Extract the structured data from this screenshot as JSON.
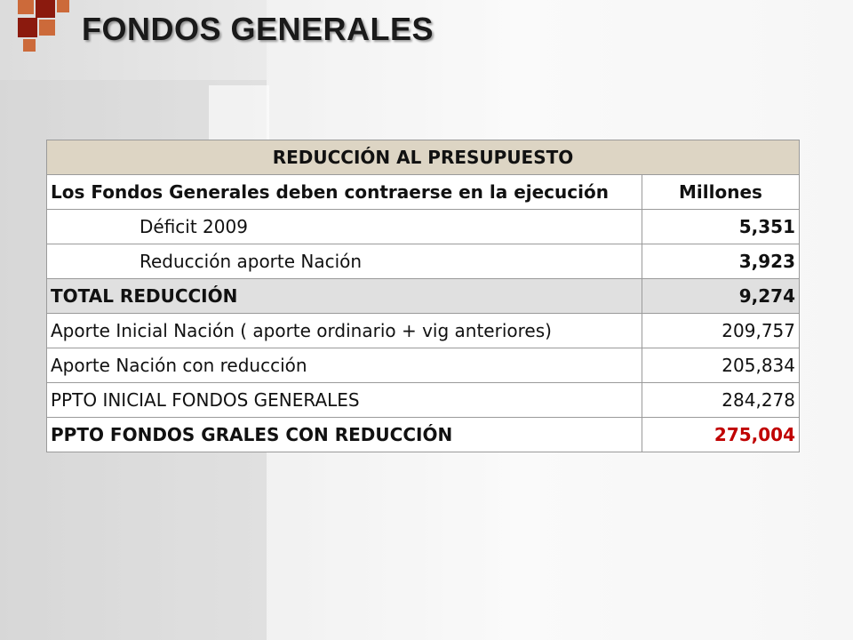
{
  "slide": {
    "title": "FONDOS GENERALES"
  },
  "colors": {
    "logo_dark": "#8b1a0e",
    "logo_light": "#cc6a3a",
    "header_fill": "#ddd5c4",
    "total_fill": "#e0e0e0",
    "highlight_red": "#c00000"
  },
  "table": {
    "header": "REDUCCIÓN AL PRESUPUESTO",
    "intro_label": "Los Fondos Generales deben contraerse en la ejecución",
    "unit_label": "Millones",
    "rows": [
      {
        "label": "Déficit 2009",
        "value": "5,351"
      },
      {
        "label": "Reducción aporte Nación",
        "value": "3,923"
      },
      {
        "label": "TOTAL REDUCCIÓN",
        "value": "9,274"
      },
      {
        "label": "Aporte Inicial Nación ( aporte ordinario + vig anteriores)",
        "value": "209,757"
      },
      {
        "label": "Aporte Nación con reducción",
        "value": "205,834"
      },
      {
        "label": "PPTO  INICIAL FONDOS GENERALES",
        "value": "284,278"
      },
      {
        "label": "PPTO  FONDOS GRALES CON REDUCCIÓN",
        "value": "275,004"
      }
    ]
  }
}
